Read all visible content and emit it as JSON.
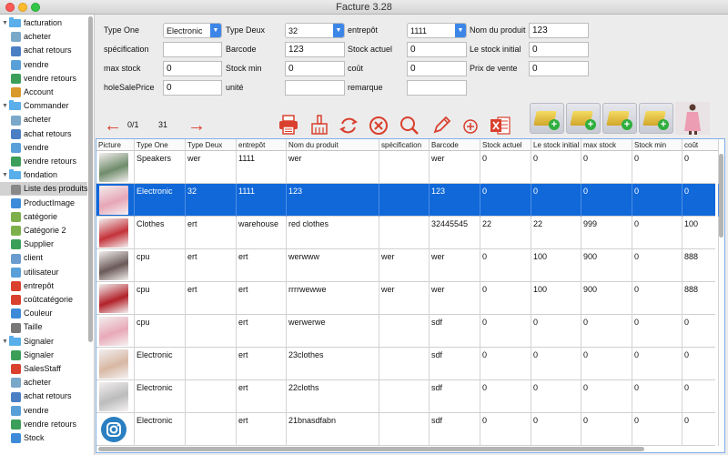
{
  "window": {
    "title": "Facture 3.28"
  },
  "sidebar": {
    "items": [
      {
        "label": "facturation",
        "type": "group",
        "icon": "folder-icon"
      },
      {
        "label": "acheter",
        "type": "child",
        "icon": "purchase-icon",
        "color": "#7aa8c8"
      },
      {
        "label": "achat retours",
        "type": "child",
        "icon": "purchase-return-icon",
        "color": "#4b7fc4"
      },
      {
        "label": "vendre",
        "type": "child",
        "icon": "sell-icon",
        "color": "#5aa0d8"
      },
      {
        "label": "vendre retours",
        "type": "child",
        "icon": "sell-return-icon",
        "color": "#3b9f5a"
      },
      {
        "label": "Account",
        "type": "child",
        "icon": "account-icon",
        "color": "#d89a2a"
      },
      {
        "label": "Commander",
        "type": "group",
        "icon": "folder-icon"
      },
      {
        "label": "acheter",
        "type": "child",
        "icon": "purchase-icon",
        "color": "#7aa8c8"
      },
      {
        "label": "achat retours",
        "type": "child",
        "icon": "purchase-return-icon",
        "color": "#4b7fc4"
      },
      {
        "label": "vendre",
        "type": "child",
        "icon": "sell-icon",
        "color": "#5aa0d8"
      },
      {
        "label": "vendre retours",
        "type": "child",
        "icon": "sell-return-icon",
        "color": "#3b9f5a"
      },
      {
        "label": "fondation",
        "type": "group",
        "icon": "folder-icon"
      },
      {
        "label": "Liste des produits",
        "type": "child",
        "icon": "product-list-icon",
        "color": "#888888",
        "selected": true
      },
      {
        "label": "ProductImage",
        "type": "child",
        "icon": "product-image-icon",
        "color": "#3d8bd8"
      },
      {
        "label": "catégorie",
        "type": "child",
        "icon": "category-icon",
        "color": "#7db04a"
      },
      {
        "label": "Catégorie 2",
        "type": "child",
        "icon": "category-2-icon",
        "color": "#7db04a"
      },
      {
        "label": "Supplier",
        "type": "child",
        "icon": "supplier-icon",
        "color": "#3b9f5a"
      },
      {
        "label": "client",
        "type": "child",
        "icon": "client-icon",
        "color": "#6a9ccf"
      },
      {
        "label": "utilisateur",
        "type": "child",
        "icon": "user-icon",
        "color": "#5aa0d8"
      },
      {
        "label": "entrepôt",
        "type": "child",
        "icon": "warehouse-icon",
        "color": "#d9402e"
      },
      {
        "label": "coûtcatégorie",
        "type": "child",
        "icon": "cost-category-icon",
        "color": "#d9402e"
      },
      {
        "label": "Couleur",
        "type": "child",
        "icon": "color-icon",
        "color": "#3d8bd8"
      },
      {
        "label": "Taille",
        "type": "child",
        "icon": "size-icon",
        "color": "#777777"
      },
      {
        "label": "Signaler",
        "type": "group",
        "icon": "folder-icon"
      },
      {
        "label": "Signaler",
        "type": "child",
        "icon": "report-icon",
        "color": "#3b9f5a"
      },
      {
        "label": "SalesStaff",
        "type": "child",
        "icon": "sales-staff-icon",
        "color": "#d9402e"
      },
      {
        "label": "acheter",
        "type": "child",
        "icon": "purchase-icon",
        "color": "#7aa8c8"
      },
      {
        "label": "achat retours",
        "type": "child",
        "icon": "purchase-return-icon",
        "color": "#4b7fc4"
      },
      {
        "label": "vendre",
        "type": "child",
        "icon": "sell-icon",
        "color": "#5aa0d8"
      },
      {
        "label": "vendre retours",
        "type": "child",
        "icon": "sell-return-icon",
        "color": "#3b9f5a"
      },
      {
        "label": "Stock",
        "type": "child",
        "icon": "stock-icon",
        "color": "#3d8bd8"
      }
    ]
  },
  "form": {
    "type_one": {
      "label": "Type One",
      "value": "Electronic"
    },
    "type_deux": {
      "label": "Type Deux",
      "value": "32"
    },
    "entrepot": {
      "label": "entrepôt",
      "value": "1111"
    },
    "nom_du_produit": {
      "label": "Nom du produit",
      "value": "123"
    },
    "specification": {
      "label": "spécification",
      "value": ""
    },
    "barcode": {
      "label": "Barcode",
      "value": "123"
    },
    "stock_actuel": {
      "label": "Stock actuel",
      "value": "0"
    },
    "le_stock_initial": {
      "label": "Le stock initial",
      "value": "0"
    },
    "max_stock": {
      "label": "max stock",
      "value": "0"
    },
    "stock_min": {
      "label": "Stock min",
      "value": "0"
    },
    "cout": {
      "label": "coût",
      "value": "0"
    },
    "prix_de_vente": {
      "label": "Prix de vente",
      "value": "0"
    },
    "hole_sale_price": {
      "label": "holeSalePrice",
      "value": "0"
    },
    "unite": {
      "label": "unité",
      "value": ""
    },
    "remarque": {
      "label": "remarque",
      "value": ""
    }
  },
  "toolbar": {
    "page_indicator": "0/1",
    "record_count": "31",
    "accent": "#d9402e"
  },
  "table": {
    "headers": [
      "Picture",
      "Type One",
      "Type Deux",
      "entrepôt",
      "Nom du produit",
      "spécification",
      "Barcode",
      "Stock actuel",
      "Le stock initial",
      "max stock",
      "Stock min",
      "coût"
    ],
    "rows": [
      {
        "thumb": "#6f8c6a",
        "cells": [
          "Speakers",
          "wer",
          "1111",
          "wer",
          "",
          "wer",
          "0",
          "0",
          "0",
          "0",
          "0"
        ]
      },
      {
        "thumb": "#e7a6b7",
        "selected": true,
        "cells": [
          "Electronic",
          "32",
          "1111",
          "123",
          "",
          "123",
          "0",
          "0",
          "0",
          "0",
          "0"
        ]
      },
      {
        "thumb": "#c4323a",
        "cells": [
          "Clothes",
          "ert",
          "warehouse",
          "red clothes",
          "",
          "32445545",
          "22",
          "22",
          "999",
          "0",
          "100"
        ]
      },
      {
        "thumb": "#6a5a58",
        "cells": [
          "cpu",
          "ert",
          "ert",
          "werwww",
          "wer",
          "wer",
          "0",
          "100",
          "900",
          "0",
          "888"
        ]
      },
      {
        "thumb": "#b2222a",
        "cells": [
          "cpu",
          "ert",
          "ert",
          "rrrrwewwe",
          "wer",
          "wer",
          "0",
          "100",
          "900",
          "0",
          "888"
        ]
      },
      {
        "thumb": "#e8a9b8",
        "cells": [
          "cpu",
          "",
          "ert",
          "werwerwe",
          "",
          "sdf",
          "0",
          "0",
          "0",
          "0",
          "0"
        ]
      },
      {
        "thumb": "#d8b8a4",
        "cells": [
          "Electronic",
          "",
          "ert",
          "23clothes",
          "",
          "sdf",
          "0",
          "0",
          "0",
          "0",
          "0"
        ]
      },
      {
        "thumb": "#bcbcbc",
        "cells": [
          "Electronic",
          "",
          "ert",
          "22cloths",
          "",
          "sdf",
          "0",
          "0",
          "0",
          "0",
          "0"
        ]
      },
      {
        "thumb": "#2a7fc1",
        "instagram": true,
        "cells": [
          "Electronic",
          "",
          "ert",
          "21bnasdfabn",
          "",
          "sdf",
          "0",
          "0",
          "0",
          "0",
          "0"
        ]
      }
    ]
  }
}
